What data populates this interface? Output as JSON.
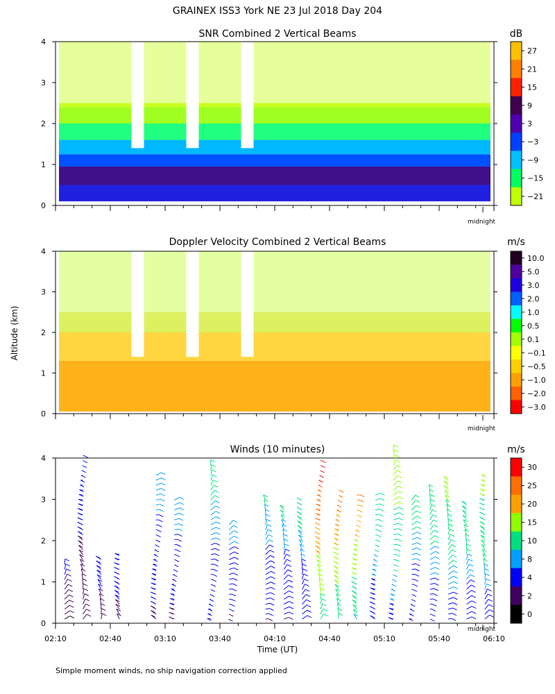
{
  "figure": {
    "title": "GRAINEX ISS3 York NE  23 Jul 2018 Day 204",
    "ylabel": "Altitude (km)",
    "xlabel": "Time (UT)",
    "footnote": "Simple moment winds, no ship navigation correction applied",
    "midnight_label": "midnight"
  },
  "chart_data": [
    {
      "type": "heatmap",
      "title": "SNR Combined 2 Vertical Beams",
      "unit": "dB",
      "ylim": [
        0,
        4
      ],
      "yticks": [
        "0",
        "1",
        "2",
        "3",
        "4"
      ],
      "colorbar_ticks": [
        "27",
        "21",
        "15",
        "9",
        "3",
        "−3",
        "−9",
        "−15",
        "−21"
      ],
      "colorbar_colors": [
        "#ffc000",
        "#ff8000",
        "#ff2000",
        "#400050",
        "#5000b0",
        "#0040ff",
        "#00c0ff",
        "#00ff60",
        "#c0ff00"
      ],
      "bands": [
        {
          "alt_range": [
            0.1,
            0.5
          ],
          "snr_db": 6,
          "color": "#2020e0"
        },
        {
          "alt_range": [
            0.5,
            0.95
          ],
          "snr_db": 9,
          "color": "#40108a"
        },
        {
          "alt_range": [
            0.95,
            1.25
          ],
          "snr_db": -3,
          "color": "#0050ff"
        },
        {
          "alt_range": [
            1.25,
            1.6
          ],
          "snr_db": -9,
          "color": "#00b8ff"
        },
        {
          "alt_range": [
            1.6,
            2.0
          ],
          "snr_db": -15,
          "color": "#20ff80"
        },
        {
          "alt_range": [
            2.0,
            2.4
          ],
          "snr_db": -18,
          "color": "#a0ff20"
        },
        {
          "alt_range": [
            2.4,
            4.0
          ],
          "snr_db": -21,
          "color": "#c8ff20"
        }
      ],
      "gaps_time_UT": [
        "02:55",
        "03:25",
        "03:55"
      ]
    },
    {
      "type": "heatmap",
      "title": "Doppler Velocity Combined 2 Vertical Beams",
      "unit": "m/s",
      "ylim": [
        0,
        4
      ],
      "yticks": [
        "0",
        "1",
        "2",
        "3",
        "4"
      ],
      "colorbar_ticks": [
        "10.0",
        "5.0",
        "3.0",
        "2.0",
        "1.0",
        "0.5",
        "0.1",
        "−0.1",
        "−0.5",
        "−1.0",
        "−2.0",
        "−3.0"
      ],
      "colorbar_colors": [
        "#200020",
        "#5000a0",
        "#2000e0",
        "#0060ff",
        "#00ffff",
        "#00ff00",
        "#a0ff00",
        "#ffff00",
        "#ffd000",
        "#ffa000",
        "#ff6000",
        "#ff0000"
      ],
      "bands": [
        {
          "alt_range": [
            0.05,
            1.3
          ],
          "velocity_ms": -0.7,
          "color": "#ffb21a"
        },
        {
          "alt_range": [
            1.3,
            2.0
          ],
          "velocity_ms": -0.3,
          "color": "#ffd640"
        },
        {
          "alt_range": [
            2.0,
            2.5
          ],
          "velocity_ms": 0.05,
          "color": "#ddf060"
        },
        {
          "alt_range": [
            2.5,
            4.0
          ],
          "velocity_ms": 0.1,
          "color": "#c0ff30"
        }
      ]
    },
    {
      "type": "scatter",
      "title": "Winds (10 minutes)",
      "unit": "m/s",
      "ylim": [
        0,
        4
      ],
      "yticks": [
        "0",
        "1",
        "2",
        "3",
        "4"
      ],
      "xticks": [
        "02:10",
        "02:40",
        "03:10",
        "03:40",
        "04:10",
        "04:40",
        "05:10",
        "05:40",
        "06:10"
      ],
      "colorbar_ticks": [
        "30",
        "25",
        "20",
        "15",
        "10",
        "8",
        "4",
        "2",
        "0"
      ],
      "colorbar_colors": [
        "#ff0000",
        "#ff7000",
        "#ffa000",
        "#90ff00",
        "#00e080",
        "#00a0ff",
        "#0000ff",
        "#400060",
        "#000000"
      ],
      "profiles": [
        {
          "time": "02:15",
          "top_km": 1.5,
          "speed_ms": 4
        },
        {
          "time": "02:25",
          "top_km": 4.1,
          "speed_ms": 5
        },
        {
          "time": "02:35",
          "top_km": 1.6,
          "speed_ms": 5
        },
        {
          "time": "02:45",
          "top_km": 1.7,
          "speed_ms": 6
        },
        {
          "time": "03:05",
          "top_km": 3.6,
          "speed_ms": 8
        },
        {
          "time": "03:15",
          "top_km": 3.0,
          "speed_ms": 8
        },
        {
          "time": "03:35",
          "top_km": 3.9,
          "speed_ms": 10
        },
        {
          "time": "03:45",
          "top_km": 2.4,
          "speed_ms": 8
        },
        {
          "time": "04:05",
          "top_km": 3.1,
          "speed_ms": 9
        },
        {
          "time": "04:15",
          "top_km": 2.8,
          "speed_ms": 9
        },
        {
          "time": "04:25",
          "top_km": 3.0,
          "speed_ms": 10
        },
        {
          "time": "04:35",
          "top_km": 4.0,
          "speed_ms": 28
        },
        {
          "time": "04:45",
          "top_km": 3.3,
          "speed_ms": 24
        },
        {
          "time": "04:55",
          "top_km": 3.2,
          "speed_ms": 22
        },
        {
          "time": "05:05",
          "top_km": 3.2,
          "speed_ms": 12
        },
        {
          "time": "05:15",
          "top_km": 4.2,
          "speed_ms": 16
        },
        {
          "time": "05:25",
          "top_km": 3.0,
          "speed_ms": 10
        },
        {
          "time": "05:35",
          "top_km": 3.3,
          "speed_ms": 12
        },
        {
          "time": "05:45",
          "top_km": 3.5,
          "speed_ms": 14
        },
        {
          "time": "05:55",
          "top_km": 2.9,
          "speed_ms": 12
        },
        {
          "time": "06:05",
          "top_km": 3.6,
          "speed_ms": 14
        }
      ]
    }
  ]
}
